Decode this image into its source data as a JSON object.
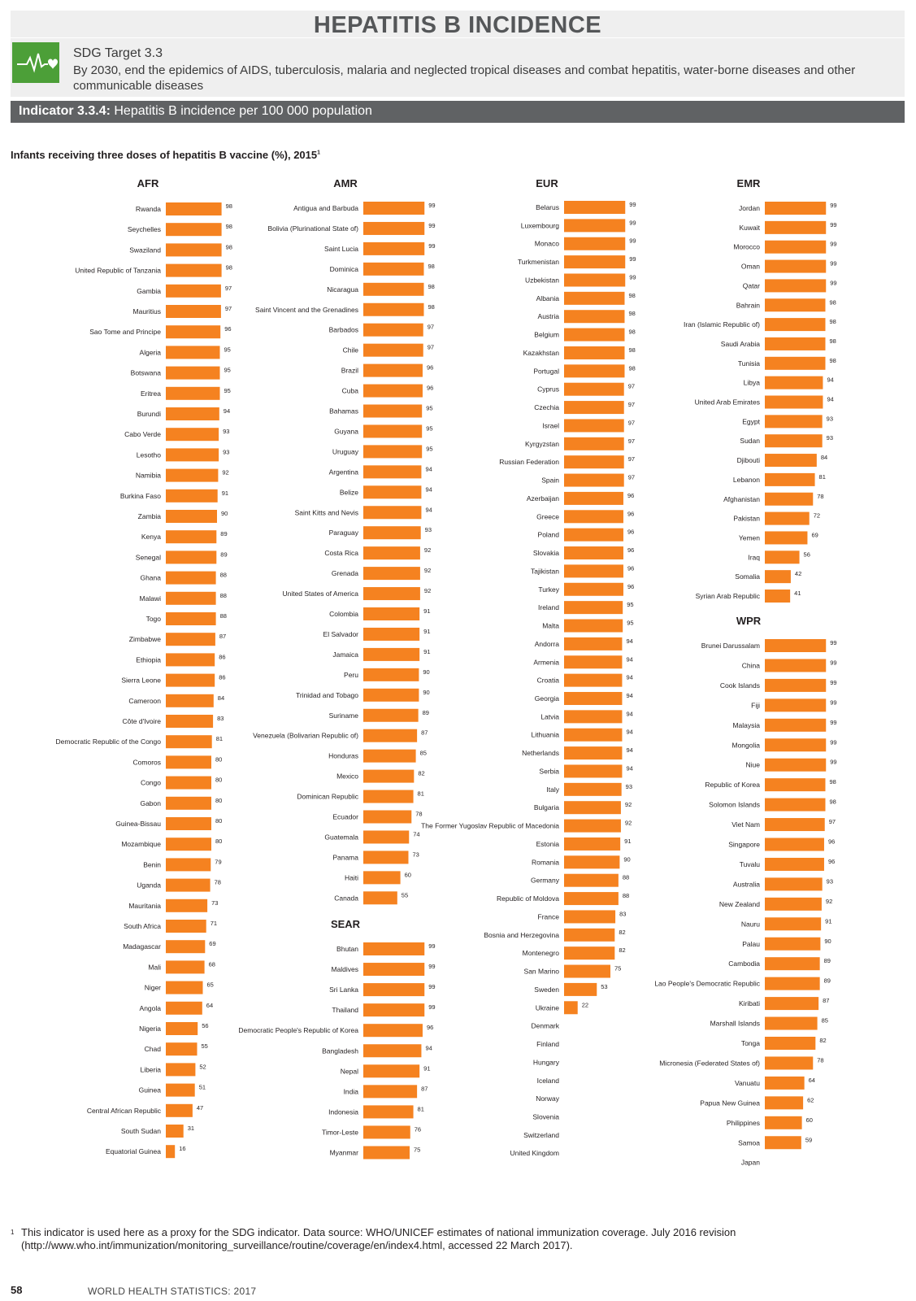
{
  "header": {
    "title": "HEPATITIS B INCIDENCE",
    "sdg_target": "SDG Target 3.3",
    "sdg_text": "By 2030, end the epidemics of AIDS, tuberculosis, malaria and neglected tropical diseases and combat hepatitis, water-borne diseases and other communicable diseases",
    "indicator_label": "Indicator 3.3.4:",
    "indicator_text": "Hepatitis B incidence per 100 000 population",
    "icon": "sdg-goal-3-heartbeat-icon",
    "icon_color": "#4c9f38"
  },
  "chart_title": "Infants receiving three doses of hepatitis B vaccine (%), 2015",
  "chart_title_note": "1",
  "bar_color": "#f58220",
  "chart_data": {
    "type": "bar",
    "orientation": "horizontal",
    "title": "Infants receiving three doses of hepatitis B vaccine (%), 2015",
    "xlim": [
      0,
      100
    ],
    "grid": false,
    "panels": [
      {
        "region": "AFR",
        "countries": [
          [
            "Rwanda",
            98
          ],
          [
            "Seychelles",
            98
          ],
          [
            "Swaziland",
            98
          ],
          [
            "United Republic of Tanzania",
            98
          ],
          [
            "Gambia",
            97
          ],
          [
            "Mauritius",
            97
          ],
          [
            "Sao Tome and Principe",
            96
          ],
          [
            "Algeria",
            95
          ],
          [
            "Botswana",
            95
          ],
          [
            "Eritrea",
            95
          ],
          [
            "Burundi",
            94
          ],
          [
            "Cabo Verde",
            93
          ],
          [
            "Lesotho",
            93
          ],
          [
            "Namibia",
            92
          ],
          [
            "Burkina Faso",
            91
          ],
          [
            "Zambia",
            90
          ],
          [
            "Kenya",
            89
          ],
          [
            "Senegal",
            89
          ],
          [
            "Ghana",
            88
          ],
          [
            "Malawi",
            88
          ],
          [
            "Togo",
            88
          ],
          [
            "Zimbabwe",
            87
          ],
          [
            "Ethiopia",
            86
          ],
          [
            "Sierra Leone",
            86
          ],
          [
            "Cameroon",
            84
          ],
          [
            "Côte d'Ivoire",
            83
          ],
          [
            "Democratic Republic of the Congo",
            81
          ],
          [
            "Comoros",
            80
          ],
          [
            "Congo",
            80
          ],
          [
            "Gabon",
            80
          ],
          [
            "Guinea-Bissau",
            80
          ],
          [
            "Mozambique",
            80
          ],
          [
            "Benin",
            79
          ],
          [
            "Uganda",
            78
          ],
          [
            "Mauritania",
            73
          ],
          [
            "South Africa",
            71
          ],
          [
            "Madagascar",
            69
          ],
          [
            "Mali",
            68
          ],
          [
            "Niger",
            65
          ],
          [
            "Angola",
            64
          ],
          [
            "Nigeria",
            56
          ],
          [
            "Chad",
            55
          ],
          [
            "Liberia",
            52
          ],
          [
            "Guinea",
            51
          ],
          [
            "Central African Republic",
            47
          ],
          [
            "South Sudan",
            31
          ],
          [
            "Equatorial Guinea",
            16
          ]
        ]
      },
      {
        "region": "AMR",
        "countries": [
          [
            "Antigua and Barbuda",
            99
          ],
          [
            "Bolivia (Plurinational State of)",
            99
          ],
          [
            "Saint Lucia",
            99
          ],
          [
            "Dominica",
            98
          ],
          [
            "Nicaragua",
            98
          ],
          [
            "Saint Vincent and the Grenadines",
            98
          ],
          [
            "Barbados",
            97
          ],
          [
            "Chile",
            97
          ],
          [
            "Brazil",
            96
          ],
          [
            "Cuba",
            96
          ],
          [
            "Bahamas",
            95
          ],
          [
            "Guyana",
            95
          ],
          [
            "Uruguay",
            95
          ],
          [
            "Argentina",
            94
          ],
          [
            "Belize",
            94
          ],
          [
            "Saint Kitts and Nevis",
            94
          ],
          [
            "Paraguay",
            93
          ],
          [
            "Costa Rica",
            92
          ],
          [
            "Grenada",
            92
          ],
          [
            "United States of America",
            92
          ],
          [
            "Colombia",
            91
          ],
          [
            "El Salvador",
            91
          ],
          [
            "Jamaica",
            91
          ],
          [
            "Peru",
            90
          ],
          [
            "Trinidad and Tobago",
            90
          ],
          [
            "Suriname",
            89
          ],
          [
            "Venezuela (Bolivarian Republic of)",
            87
          ],
          [
            "Honduras",
            85
          ],
          [
            "Mexico",
            82
          ],
          [
            "Dominican Republic",
            81
          ],
          [
            "Ecuador",
            78
          ],
          [
            "Guatemala",
            74
          ],
          [
            "Panama",
            73
          ],
          [
            "Haiti",
            60
          ],
          [
            "Canada",
            55
          ]
        ]
      },
      {
        "region": "SEAR",
        "countries": [
          [
            "Bhutan",
            99
          ],
          [
            "Maldives",
            99
          ],
          [
            "Sri Lanka",
            99
          ],
          [
            "Thailand",
            99
          ],
          [
            "Democratic People's Republic of Korea",
            96
          ],
          [
            "Bangladesh",
            94
          ],
          [
            "Nepal",
            91
          ],
          [
            "India",
            87
          ],
          [
            "Indonesia",
            81
          ],
          [
            "Timor-Leste",
            76
          ],
          [
            "Myanmar",
            75
          ]
        ]
      },
      {
        "region": "EUR",
        "countries": [
          [
            "Belarus",
            99
          ],
          [
            "Luxembourg",
            99
          ],
          [
            "Monaco",
            99
          ],
          [
            "Turkmenistan",
            99
          ],
          [
            "Uzbekistan",
            99
          ],
          [
            "Albania",
            98
          ],
          [
            "Austria",
            98
          ],
          [
            "Belgium",
            98
          ],
          [
            "Kazakhstan",
            98
          ],
          [
            "Portugal",
            98
          ],
          [
            "Cyprus",
            97
          ],
          [
            "Czechia",
            97
          ],
          [
            "Israel",
            97
          ],
          [
            "Kyrgyzstan",
            97
          ],
          [
            "Russian Federation",
            97
          ],
          [
            "Spain",
            97
          ],
          [
            "Azerbaijan",
            96
          ],
          [
            "Greece",
            96
          ],
          [
            "Poland",
            96
          ],
          [
            "Slovakia",
            96
          ],
          [
            "Tajikistan",
            96
          ],
          [
            "Turkey",
            96
          ],
          [
            "Ireland",
            95
          ],
          [
            "Malta",
            95
          ],
          [
            "Andorra",
            94
          ],
          [
            "Armenia",
            94
          ],
          [
            "Croatia",
            94
          ],
          [
            "Georgia",
            94
          ],
          [
            "Latvia",
            94
          ],
          [
            "Lithuania",
            94
          ],
          [
            "Netherlands",
            94
          ],
          [
            "Serbia",
            94
          ],
          [
            "Italy",
            93
          ],
          [
            "Bulgaria",
            92
          ],
          [
            "The Former Yugoslav Republic of Macedonia",
            92
          ],
          [
            "Estonia",
            91
          ],
          [
            "Romania",
            90
          ],
          [
            "Germany",
            88
          ],
          [
            "Republic of Moldova",
            88
          ],
          [
            "France",
            83
          ],
          [
            "Bosnia and Herzegovina",
            82
          ],
          [
            "Montenegro",
            82
          ],
          [
            "San Marino",
            75
          ],
          [
            "Sweden",
            53
          ],
          [
            "Ukraine",
            22
          ],
          [
            "Denmark",
            null
          ],
          [
            "Finland",
            null
          ],
          [
            "Hungary",
            null
          ],
          [
            "Iceland",
            null
          ],
          [
            "Norway",
            null
          ],
          [
            "Slovenia",
            null
          ],
          [
            "Switzerland",
            null
          ],
          [
            "United Kingdom",
            null
          ]
        ]
      },
      {
        "region": "EMR",
        "countries": [
          [
            "Jordan",
            99
          ],
          [
            "Kuwait",
            99
          ],
          [
            "Morocco",
            99
          ],
          [
            "Oman",
            99
          ],
          [
            "Qatar",
            99
          ],
          [
            "Bahrain",
            98
          ],
          [
            "Iran (Islamic Republic of)",
            98
          ],
          [
            "Saudi Arabia",
            98
          ],
          [
            "Tunisia",
            98
          ],
          [
            "Libya",
            94
          ],
          [
            "United Arab Emirates",
            94
          ],
          [
            "Egypt",
            93
          ],
          [
            "Sudan",
            93
          ],
          [
            "Djibouti",
            84
          ],
          [
            "Lebanon",
            81
          ],
          [
            "Afghanistan",
            78
          ],
          [
            "Pakistan",
            72
          ],
          [
            "Yemen",
            69
          ],
          [
            "Iraq",
            56
          ],
          [
            "Somalia",
            42
          ],
          [
            "Syrian Arab Republic",
            41
          ]
        ]
      },
      {
        "region": "WPR",
        "countries": [
          [
            "Brunei Darussalam",
            99
          ],
          [
            "China",
            99
          ],
          [
            "Cook Islands",
            99
          ],
          [
            "Fiji",
            99
          ],
          [
            "Malaysia",
            99
          ],
          [
            "Mongolia",
            99
          ],
          [
            "Niue",
            99
          ],
          [
            "Republic of Korea",
            98
          ],
          [
            "Solomon Islands",
            98
          ],
          [
            "Viet Nam",
            97
          ],
          [
            "Singapore",
            96
          ],
          [
            "Tuvalu",
            96
          ],
          [
            "Australia",
            93
          ],
          [
            "New Zealand",
            92
          ],
          [
            "Nauru",
            91
          ],
          [
            "Palau",
            90
          ],
          [
            "Cambodia",
            89
          ],
          [
            "Lao People's Democratic Republic",
            89
          ],
          [
            "Kiribati",
            87
          ],
          [
            "Marshall Islands",
            85
          ],
          [
            "Tonga",
            82
          ],
          [
            "Micronesia (Federated States of)",
            78
          ],
          [
            "Vanuatu",
            64
          ],
          [
            "Papua New Guinea",
            62
          ],
          [
            "Philippines",
            60
          ],
          [
            "Samoa",
            59
          ],
          [
            "Japan",
            null
          ]
        ]
      }
    ]
  },
  "footnote_mark": "1",
  "footnote": "This indicator is used here as a proxy for the SDG indicator. Data source: WHO/UNICEF estimates of national immunization coverage. July 2016 revision (http://www.who.int/immunization/monitoring_surveillance/routine/coverage/en/index4.html, accessed 22 March 2017).",
  "footer": {
    "page_number": "58",
    "publication": "WORLD HEALTH STATISTICS: 2017"
  }
}
